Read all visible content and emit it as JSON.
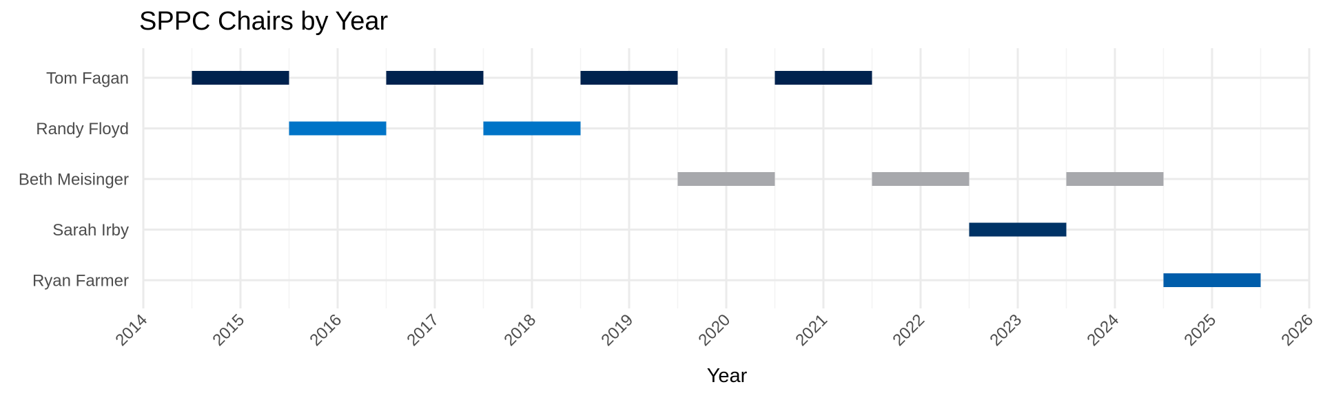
{
  "chart_data": {
    "type": "bar",
    "orientation": "horizontal-timeline",
    "title": "SPPC Chairs by Year",
    "xlabel": "Year",
    "ylabel": "",
    "xlim": [
      2014,
      2026
    ],
    "x_ticks": [
      "2014",
      "2015",
      "2016",
      "2017",
      "2018",
      "2019",
      "2020",
      "2021",
      "2022",
      "2023",
      "2024",
      "2025",
      "2026"
    ],
    "categories": [
      "Tom Fagan",
      "Randy Floyd",
      "Beth Meisinger",
      "Sarah Irby",
      "Ryan Farmer"
    ],
    "grid": true,
    "legend": "none",
    "series": [
      {
        "category": "Tom Fagan",
        "color": "#00224e",
        "years": [
          2015,
          2017,
          2019,
          2021
        ]
      },
      {
        "category": "Randy Floyd",
        "color": "#0074c7",
        "years": [
          2016,
          2018
        ]
      },
      {
        "category": "Beth Meisinger",
        "color": "#a7a8ac",
        "years": [
          2020,
          2022,
          2024
        ]
      },
      {
        "category": "Sarah Irby",
        "color": "#003366",
        "years": [
          2023
        ]
      },
      {
        "category": "Ryan Farmer",
        "color": "#005daa",
        "years": [
          2025
        ]
      }
    ]
  }
}
